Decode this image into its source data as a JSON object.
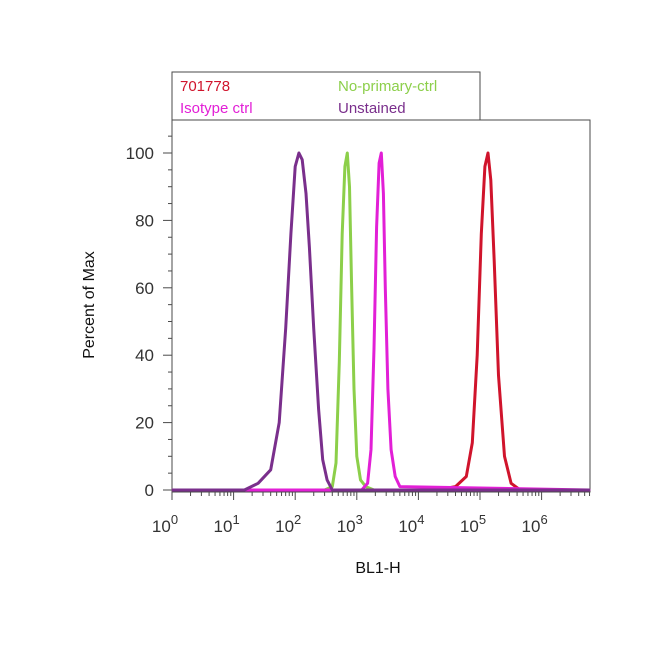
{
  "chart_data": {
    "type": "line",
    "title": "",
    "xlabel": "BL1-H",
    "ylabel": "Percent of Max",
    "x_scale": "log",
    "xlim": [
      1,
      6000000
    ],
    "ylim": [
      0,
      110
    ],
    "x_ticks": [
      {
        "value": 1,
        "base": "10",
        "exp": "0"
      },
      {
        "value": 10,
        "base": "10",
        "exp": "1"
      },
      {
        "value": 100,
        "base": "10",
        "exp": "2"
      },
      {
        "value": 1000,
        "base": "10",
        "exp": "3"
      },
      {
        "value": 10000,
        "base": "10",
        "exp": "4"
      },
      {
        "value": 100000,
        "base": "10",
        "exp": "5"
      },
      {
        "value": 1000000,
        "base": "10",
        "exp": "6"
      }
    ],
    "y_ticks": [
      {
        "value": 0,
        "label": "0"
      },
      {
        "value": 20,
        "label": "20"
      },
      {
        "value": 40,
        "label": "40"
      },
      {
        "value": 60,
        "label": "60"
      },
      {
        "value": 80,
        "label": "80"
      },
      {
        "value": 100,
        "label": "100"
      }
    ],
    "grid": false,
    "legend_position": "top",
    "series": [
      {
        "name": "701778",
        "color": "#d0142c",
        "x": [
          1,
          10,
          5000,
          20000,
          40000,
          60000,
          75000,
          90000,
          105000,
          120000,
          135000,
          150000,
          170000,
          200000,
          250000,
          320000,
          450000,
          1000000,
          6000000
        ],
        "y": [
          0,
          0,
          0,
          0,
          1,
          4,
          14,
          40,
          76,
          96,
          100,
          92,
          68,
          34,
          10,
          2,
          0,
          0,
          0
        ]
      },
      {
        "name": "No-primary-ctrl",
        "color": "#8ccf4a",
        "x": [
          1,
          300,
          400,
          460,
          520,
          580,
          640,
          700,
          760,
          820,
          900,
          1000,
          1150,
          1400,
          1900,
          6000000
        ],
        "y": [
          0,
          0,
          1,
          8,
          38,
          76,
          96,
          100,
          90,
          62,
          30,
          10,
          3,
          1,
          0,
          0
        ]
      },
      {
        "name": "Isotype ctrl",
        "color": "#e21fd6",
        "x": [
          1,
          1200,
          1500,
          1700,
          1900,
          2100,
          2300,
          2500,
          2700,
          2900,
          3200,
          3600,
          4200,
          5000,
          6000000
        ],
        "y": [
          0,
          0,
          2,
          12,
          42,
          78,
          97,
          100,
          88,
          60,
          30,
          12,
          4,
          1,
          0
        ]
      },
      {
        "name": "Unstained",
        "color": "#7a2f8c",
        "x": [
          1,
          15,
          25,
          40,
          55,
          70,
          85,
          100,
          115,
          130,
          150,
          170,
          200,
          240,
          280,
          330,
          400,
          6000000
        ],
        "y": [
          0,
          0,
          2,
          6,
          20,
          48,
          76,
          96,
          100,
          98,
          88,
          72,
          48,
          24,
          9,
          3,
          0,
          0
        ]
      }
    ]
  }
}
